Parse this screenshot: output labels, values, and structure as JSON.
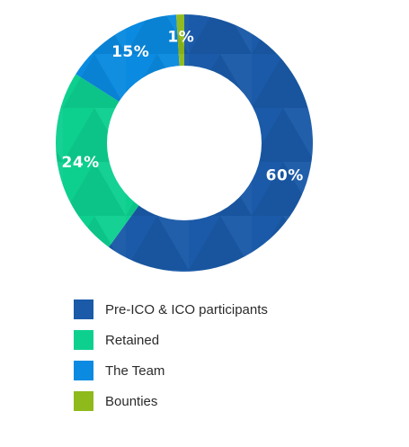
{
  "chart_data": {
    "type": "pie",
    "donut": true,
    "series": [
      {
        "name": "Pre-ICO & ICO participants",
        "value": 60,
        "label": "60%",
        "color": "#1a5aa8"
      },
      {
        "name": "Retained",
        "value": 24,
        "label": "24%",
        "color": "#0dd08f"
      },
      {
        "name": "The Team",
        "value": 15,
        "label": "15%",
        "color": "#0a8ae0"
      },
      {
        "name": "Bounties",
        "value": 1,
        "label": "1%",
        "color": "#8fba1c"
      }
    ],
    "legend_position": "bottom-left"
  },
  "legend": {
    "items": [
      {
        "label": "Pre-ICO & ICO participants",
        "color": "#1a5aa8"
      },
      {
        "label": "Retained",
        "color": "#0dd08f"
      },
      {
        "label": "The Team",
        "color": "#0a8ae0"
      },
      {
        "label": "Bounties",
        "color": "#8fba1c"
      }
    ]
  }
}
